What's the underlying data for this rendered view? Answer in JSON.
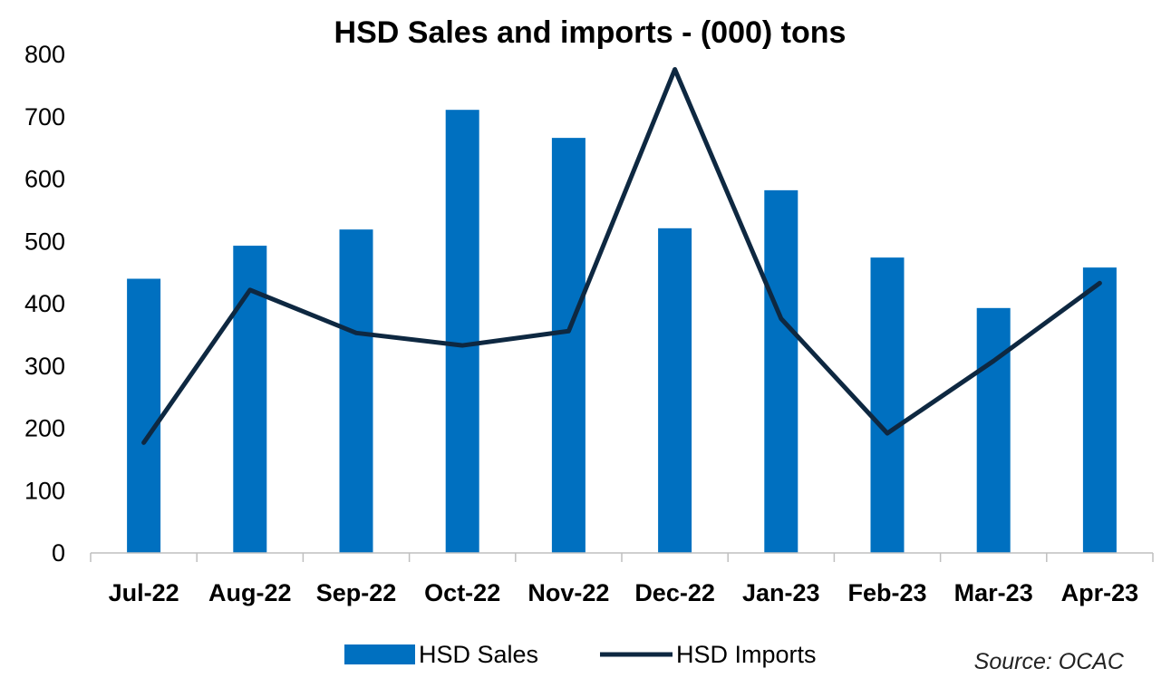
{
  "chart_data": {
    "type": "bar",
    "title": "HSD Sales and imports - (000) tons",
    "categories": [
      "Jul-22",
      "Aug-22",
      "Sep-22",
      "Oct-22",
      "Nov-22",
      "Dec-22",
      "Jan-23",
      "Feb-23",
      "Mar-23",
      "Apr-23"
    ],
    "series": [
      {
        "name": "HSD Sales",
        "type": "bar",
        "color": "#0070C0",
        "values": [
          440,
          493,
          519,
          711,
          666,
          521,
          582,
          474,
          393,
          458
        ]
      },
      {
        "name": "HSD Imports",
        "type": "line",
        "color": "#0E2841",
        "values": [
          177,
          422,
          353,
          333,
          356,
          776,
          376,
          192,
          308,
          433
        ]
      }
    ],
    "ylim": [
      0,
      800
    ],
    "yticks": [
      "0",
      "100",
      "200",
      "300",
      "400",
      "500",
      "600",
      "700",
      "800"
    ],
    "grid": false,
    "legend": "bottom",
    "source": "Source: OCAC"
  }
}
